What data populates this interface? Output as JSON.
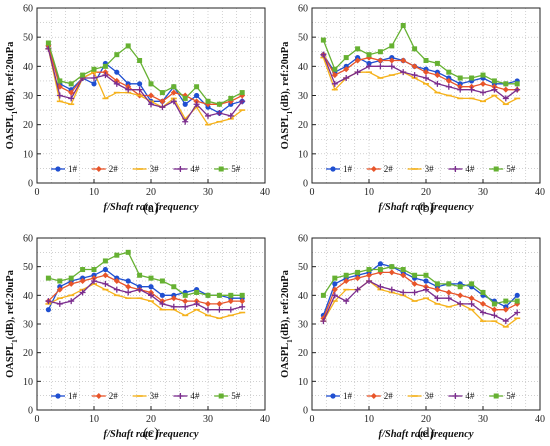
{
  "colors": {
    "1#": "#1f4fd1",
    "2#": "#e8552a",
    "3#": "#f5b21c",
    "4#": "#7b2d8e",
    "5#": "#66b132",
    "grid": "#b5b5b5",
    "axis": "#222222"
  },
  "chart_data": [
    {
      "type": "line",
      "caption": "(a)",
      "xlabel": "f/Shaft rate frequency",
      "ylabel": "OASPL1(dB), ref:20uPa",
      "xlim": [
        0,
        40
      ],
      "ylim": [
        0,
        60
      ],
      "xticks": [
        0,
        10,
        20,
        30,
        40
      ],
      "yticks": [
        0,
        10,
        20,
        30,
        40,
        50,
        60
      ],
      "grid": true,
      "legend": "bottom",
      "x": [
        2,
        4,
        6,
        8,
        10,
        12,
        14,
        16,
        18,
        20,
        22,
        24,
        26,
        28,
        30,
        32,
        34,
        36
      ],
      "series": [
        {
          "name": "1#",
          "values": [
            47,
            34,
            32,
            36,
            34,
            41,
            38,
            34,
            34,
            28,
            28,
            33,
            27,
            30,
            26,
            24,
            27,
            28
          ]
        },
        {
          "name": "2#",
          "values": [
            47,
            33,
            31,
            36,
            38,
            38,
            35,
            33,
            30,
            30,
            28,
            31,
            30,
            28,
            27,
            27,
            28,
            30
          ]
        },
        {
          "name": "3#",
          "values": [
            46,
            28,
            27,
            36,
            38,
            29,
            31,
            31,
            30,
            28,
            26,
            29,
            22,
            26,
            20,
            21,
            22,
            25
          ]
        },
        {
          "name": "4#",
          "values": [
            46,
            30,
            29,
            36,
            36,
            37,
            34,
            32,
            32,
            27,
            26,
            28,
            21,
            27,
            23,
            24,
            23,
            28
          ]
        },
        {
          "name": "5#",
          "values": [
            48,
            35,
            34,
            37,
            39,
            40,
            44,
            47,
            42,
            34,
            31,
            33,
            29,
            33,
            28,
            27,
            29,
            31
          ]
        }
      ]
    },
    {
      "type": "line",
      "caption": "(b)",
      "xlabel": "f/Shaft rate frequency",
      "ylabel": "OASPL1(dB), ref:20uPa",
      "xlim": [
        0,
        40
      ],
      "ylim": [
        0,
        60
      ],
      "xticks": [
        0,
        10,
        20,
        30,
        40
      ],
      "yticks": [
        0,
        10,
        20,
        30,
        40,
        50,
        60
      ],
      "grid": true,
      "legend": "bottom",
      "x": [
        2,
        4,
        6,
        8,
        10,
        12,
        14,
        16,
        18,
        20,
        22,
        24,
        26,
        28,
        30,
        32,
        34,
        36
      ],
      "series": [
        {
          "name": "1#",
          "values": [
            44,
            38,
            40,
            43,
            41,
            42,
            43,
            42,
            40,
            39,
            38,
            36,
            34,
            35,
            36,
            34,
            34,
            35
          ]
        },
        {
          "name": "2#",
          "values": [
            44,
            37,
            39,
            42,
            43,
            42,
            42,
            42,
            40,
            38,
            37,
            35,
            33,
            33,
            34,
            33,
            32,
            32
          ]
        },
        {
          "name": "3#",
          "values": [
            43,
            32,
            36,
            38,
            38,
            36,
            37,
            38,
            36,
            34,
            31,
            30,
            29,
            29,
            28,
            30,
            27,
            29
          ]
        },
        {
          "name": "4#",
          "values": [
            44,
            34,
            36,
            38,
            40,
            40,
            40,
            38,
            37,
            36,
            34,
            33,
            32,
            32,
            31,
            32,
            29,
            32
          ]
        },
        {
          "name": "5#",
          "values": [
            49,
            39,
            43,
            46,
            44,
            45,
            47,
            54,
            46,
            42,
            41,
            38,
            36,
            36,
            37,
            35,
            34,
            34
          ]
        }
      ]
    },
    {
      "type": "line",
      "caption": "(c)",
      "xlabel": "f/Shaft rate frequency",
      "ylabel": "OASPL1(dB), ref:20uPa",
      "xlim": [
        0,
        40
      ],
      "ylim": [
        0,
        60
      ],
      "xticks": [
        0,
        10,
        20,
        30,
        40
      ],
      "yticks": [
        0,
        10,
        20,
        30,
        40,
        50,
        60
      ],
      "grid": true,
      "legend": "bottom",
      "x": [
        2,
        4,
        6,
        8,
        10,
        12,
        14,
        16,
        18,
        20,
        22,
        24,
        26,
        28,
        30,
        32,
        34,
        36
      ],
      "series": [
        {
          "name": "1#",
          "values": [
            35,
            43,
            45,
            46,
            47,
            49,
            46,
            45,
            43,
            43,
            40,
            40,
            41,
            42,
            40,
            40,
            39,
            39
          ]
        },
        {
          "name": "2#",
          "values": [
            38,
            42,
            44,
            45,
            46,
            47,
            45,
            43,
            42,
            41,
            38,
            39,
            38,
            38,
            37,
            37,
            38,
            38
          ]
        },
        {
          "name": "3#",
          "values": [
            37,
            39,
            40,
            42,
            44,
            42,
            40,
            39,
            39,
            38,
            35,
            35,
            33,
            35,
            33,
            32,
            33,
            34
          ]
        },
        {
          "name": "4#",
          "values": [
            38,
            37,
            38,
            41,
            45,
            44,
            42,
            41,
            42,
            40,
            37,
            36,
            36,
            37,
            35,
            35,
            35,
            36
          ]
        },
        {
          "name": "5#",
          "values": [
            46,
            45,
            46,
            49,
            49,
            52,
            54,
            55,
            47,
            46,
            45,
            43,
            40,
            41,
            40,
            40,
            40,
            40
          ]
        }
      ]
    },
    {
      "type": "line",
      "caption": "(d)",
      "xlabel": "f/Shaft rate frequency",
      "ylabel": "OASPL1(dB), ref:20uPa",
      "xlim": [
        0,
        40
      ],
      "ylim": [
        0,
        60
      ],
      "xticks": [
        0,
        10,
        20,
        30,
        40
      ],
      "yticks": [
        0,
        10,
        20,
        30,
        40,
        50,
        60
      ],
      "grid": true,
      "legend": "bottom",
      "x": [
        2,
        4,
        6,
        8,
        10,
        12,
        14,
        16,
        18,
        20,
        22,
        24,
        26,
        28,
        30,
        32,
        34,
        36
      ],
      "series": [
        {
          "name": "1#",
          "values": [
            33,
            44,
            46,
            47,
            48,
            51,
            50,
            48,
            46,
            45,
            43,
            44,
            44,
            43,
            40,
            38,
            36,
            40
          ]
        },
        {
          "name": "2#",
          "values": [
            32,
            42,
            45,
            46,
            47,
            48,
            48,
            47,
            44,
            43,
            42,
            41,
            40,
            39,
            37,
            35,
            35,
            37
          ]
        },
        {
          "name": "3#",
          "values": [
            31,
            38,
            42,
            42,
            45,
            42,
            41,
            40,
            38,
            39,
            37,
            36,
            37,
            35,
            31,
            31,
            29,
            32
          ]
        },
        {
          "name": "4#",
          "values": [
            31,
            40,
            38,
            42,
            45,
            43,
            42,
            41,
            41,
            42,
            39,
            39,
            37,
            37,
            34,
            33,
            31,
            34
          ]
        },
        {
          "name": "5#",
          "values": [
            40,
            46,
            47,
            48,
            49,
            49,
            50,
            49,
            47,
            47,
            44,
            44,
            43,
            44,
            41,
            37,
            38,
            38
          ]
        }
      ]
    }
  ]
}
